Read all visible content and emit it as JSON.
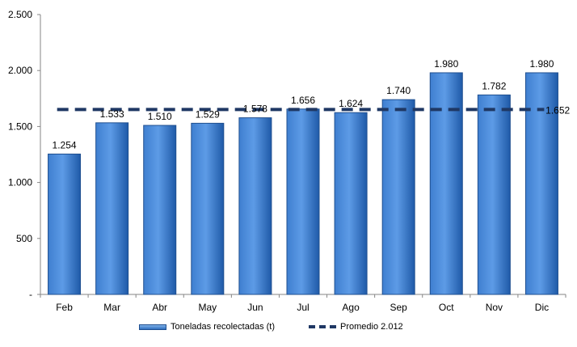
{
  "chart_data": {
    "type": "bar",
    "categories": [
      "Feb",
      "Mar",
      "Abr",
      "May",
      "Jun",
      "Jul",
      "Ago",
      "Sep",
      "Oct",
      "Nov",
      "Dic"
    ],
    "series": [
      {
        "name": "Toneladas recolectadas (t)",
        "type": "bar",
        "values": [
          1254,
          1533,
          1510,
          1529,
          1578,
          1656,
          1624,
          1740,
          1980,
          1782,
          1980
        ],
        "labels": [
          "1.254",
          "1.533",
          "1.510",
          "1.529",
          "1.578",
          "1.656",
          "1.624",
          "1.740",
          "1.980",
          "1.782",
          "1.980"
        ],
        "color": "#2f6fbf"
      },
      {
        "name": "Promedio 2.012",
        "type": "line",
        "style": "dashed",
        "value": 1652,
        "label": "1.652",
        "color": "#1f3864"
      }
    ],
    "ylim": [
      0,
      2500
    ],
    "yticks": [
      0,
      500,
      1000,
      1500,
      2000,
      2500
    ],
    "ytick_labels": [
      "-",
      "500",
      "1.000",
      "1.500",
      "2.000",
      "2.500"
    ],
    "title": "",
    "xlabel": "",
    "ylabel": "",
    "grid": false,
    "legend_position": "bottom"
  },
  "legend": {
    "bar_label": "Toneladas recolectadas (t)",
    "line_label": "Promedio 2.012"
  }
}
